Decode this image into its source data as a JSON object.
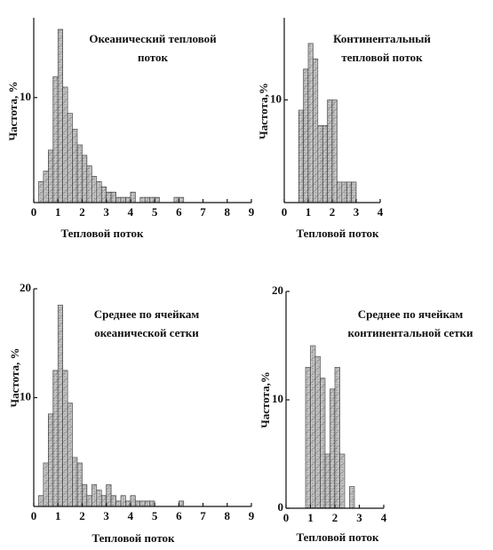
{
  "chart_data": [
    {
      "type": "histogram",
      "title": [
        "Океанический тепловой",
        "поток"
      ],
      "x_label": "Тепловой поток",
      "y_label": "Частота, %",
      "color": "#c8c8c8",
      "bins": [
        0.2,
        0.4,
        0.6,
        0.8,
        1.0,
        1.2,
        1.4,
        1.6,
        1.8,
        2.0,
        2.2,
        2.4,
        2.6,
        2.8,
        3.0,
        3.2,
        3.4,
        3.6,
        3.8,
        4.0,
        4.2,
        4.4,
        4.6,
        4.8,
        5.0,
        5.2,
        5.4,
        5.6,
        5.8,
        6.0,
        6.2
      ],
      "values": [
        2,
        3,
        5,
        12,
        16.5,
        11,
        8.5,
        7,
        5.5,
        4.5,
        3.5,
        2.5,
        2,
        1.5,
        1,
        1,
        0.5,
        0.5,
        0.5,
        1,
        0,
        0.5,
        0.5,
        0.5,
        0.5,
        0,
        0,
        0,
        0.5,
        0.5
      ],
      "xlim": [
        0,
        9
      ],
      "xticks": [
        0,
        1,
        2,
        3,
        4,
        5,
        6,
        7,
        8,
        9
      ],
      "ylim": [
        0,
        17.6
      ],
      "yticks": [
        10
      ]
    },
    {
      "type": "histogram",
      "title": [
        "Континентальный",
        "тепловой поток"
      ],
      "x_label": "Тепловой поток",
      "y_label": "Частота,%",
      "color": "#c8c8c8",
      "bins": [
        0.6,
        0.8,
        1.0,
        1.2,
        1.4,
        1.6,
        1.8,
        2.0,
        2.2,
        2.4,
        2.6,
        2.8,
        3.0
      ],
      "values": [
        9,
        13,
        15.5,
        14,
        7.5,
        7.5,
        10,
        10,
        2,
        2,
        2,
        2
      ],
      "xlim": [
        0,
        4
      ],
      "xticks": [
        0,
        1,
        2,
        3,
        4
      ],
      "ylim": [
        0,
        18
      ],
      "yticks": [
        10
      ]
    },
    {
      "type": "histogram",
      "title": [
        "Среднее по ячейкам",
        "океанической сетки"
      ],
      "x_label": "Тепловой поток",
      "y_label": "Частота, %",
      "color": "#c8c8c8",
      "bins": [
        0.2,
        0.4,
        0.6,
        0.8,
        1.0,
        1.2,
        1.4,
        1.6,
        1.8,
        2.0,
        2.2,
        2.4,
        2.6,
        2.8,
        3.0,
        3.2,
        3.4,
        3.6,
        3.8,
        4.0,
        4.2,
        4.4,
        4.6,
        4.8,
        5.0,
        5.2,
        5.4,
        5.6,
        5.8,
        6.0,
        6.2
      ],
      "values": [
        1,
        4,
        8.5,
        12.5,
        18.5,
        12.5,
        9.5,
        4.5,
        4,
        2,
        1,
        2,
        1.5,
        1,
        2,
        1,
        0.5,
        1,
        0.5,
        1,
        0.5,
        0.5,
        0.5,
        0.5,
        0,
        0,
        0,
        0,
        0,
        0.5
      ],
      "xlim": [
        0,
        9
      ],
      "xticks": [
        0,
        1,
        2,
        3,
        4,
        5,
        6,
        7,
        8,
        9
      ],
      "ylim": [
        0,
        20
      ],
      "yticks": [
        10,
        20
      ]
    },
    {
      "type": "histogram",
      "title": [
        "Среднее по ячейкам",
        "континентальной сетки"
      ],
      "x_label": "Тепловой поток",
      "y_label": "Частота,%",
      "color": "#c8c8c8",
      "bins": [
        0.8,
        1.0,
        1.2,
        1.4,
        1.6,
        1.8,
        2.0,
        2.2,
        2.4,
        2.6,
        2.8
      ],
      "values": [
        13,
        15,
        14,
        12,
        5,
        11,
        13,
        5,
        0,
        2
      ],
      "xlim": [
        0,
        4
      ],
      "xticks": [
        0,
        1,
        2,
        3,
        4
      ],
      "ylim": [
        0,
        20
      ],
      "yticks": [
        0,
        10,
        20
      ]
    }
  ]
}
